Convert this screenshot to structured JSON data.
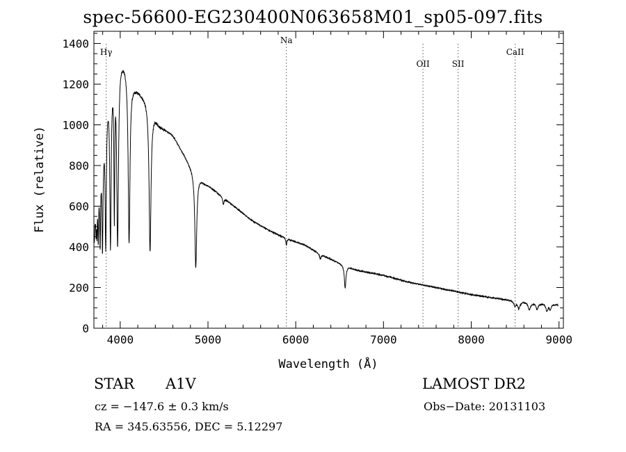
{
  "header": {
    "title": "spec-56600-EG230400N063658M01_sp05-097.fits"
  },
  "info": {
    "class": "STAR",
    "subclass": "A1V",
    "survey": "LAMOST DR2",
    "cz": "cz = −147.6 ± 0.3 km/s",
    "obs_date": "Obs−Date: 20131103",
    "radec": "RA = 345.63556, DEC =    5.12297"
  },
  "chart_data": {
    "type": "line",
    "title": "spec-56600-EG230400N063658M01_sp05-097.fits",
    "xlabel": "Wavelength (Å)",
    "ylabel": "Flux (relative)",
    "xlim": [
      3700,
      9050
    ],
    "ylim": [
      0,
      1460
    ],
    "xticks": [
      4000,
      5000,
      6000,
      7000,
      8000,
      9000
    ],
    "yticks": [
      0,
      200,
      400,
      600,
      800,
      1000,
      1200,
      1400
    ],
    "grid": false,
    "line_color": "#000000",
    "line_markers": [
      {
        "label": "Hγ",
        "x": 3840
      },
      {
        "label": "Na",
        "x": 5893
      },
      {
        "label": "OII",
        "x": 7450
      },
      {
        "label": "SII",
        "x": 7850
      },
      {
        "label": "CaII",
        "x": 8500
      }
    ],
    "continuum": {
      "x": [
        3700,
        3850,
        3950,
        4050,
        4150,
        4300,
        4450,
        4600,
        4800,
        4950,
        5100,
        5300,
        5500,
        5700,
        5900,
        6100,
        6300,
        6500,
        6700,
        7000,
        7300,
        7600,
        8000,
        8400,
        8700,
        9000
      ],
      "y": [
        500,
        1150,
        1380,
        1320,
        1200,
        1130,
        1000,
        950,
        800,
        720,
        670,
        600,
        530,
        480,
        440,
        410,
        360,
        320,
        285,
        260,
        225,
        200,
        165,
        140,
        125,
        115
      ]
    },
    "absorption_lines": [
      {
        "x": 3705,
        "depth": 80,
        "width": 4
      },
      {
        "x": 3725,
        "depth": 120,
        "width": 4
      },
      {
        "x": 3735,
        "depth": 150,
        "width": 4
      },
      {
        "x": 3750,
        "depth": 250,
        "width": 5
      },
      {
        "x": 3771,
        "depth": 350,
        "width": 6
      },
      {
        "x": 3798,
        "depth": 500,
        "width": 7
      },
      {
        "x": 3835,
        "depth": 650,
        "width": 8
      },
      {
        "x": 3889,
        "depth": 800,
        "width": 9
      },
      {
        "x": 3933,
        "depth": 700,
        "width": 6
      },
      {
        "x": 3970,
        "depth": 930,
        "width": 12
      },
      {
        "x": 4101,
        "depth": 830,
        "width": 12
      },
      {
        "x": 4340,
        "depth": 720,
        "width": 13
      },
      {
        "x": 4861,
        "depth": 470,
        "width": 13
      },
      {
        "x": 5175,
        "depth": 35,
        "width": 8
      },
      {
        "x": 5893,
        "depth": 35,
        "width": 6
      },
      {
        "x": 6280,
        "depth": 25,
        "width": 10
      },
      {
        "x": 6563,
        "depth": 110,
        "width": 11
      },
      {
        "x": 8498,
        "depth": 25,
        "width": 14
      },
      {
        "x": 8542,
        "depth": 35,
        "width": 16
      },
      {
        "x": 8662,
        "depth": 35,
        "width": 16
      },
      {
        "x": 8750,
        "depth": 30,
        "width": 14
      },
      {
        "x": 8862,
        "depth": 35,
        "width": 14
      },
      {
        "x": 8900,
        "depth": 25,
        "width": 12
      }
    ]
  }
}
